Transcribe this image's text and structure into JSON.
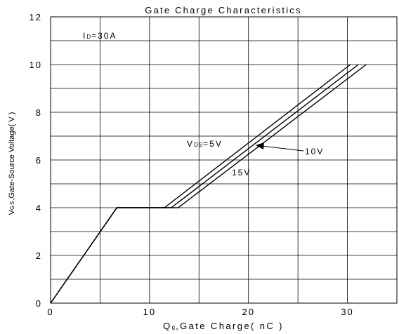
{
  "chart_data": {
    "type": "line",
    "title": "Gate Charge Characteristics",
    "xlabel_main": "Q",
    "xlabel_sub": "g",
    "xlabel_rest": ",Gate Charge( nC )",
    "ylabel_main": "V",
    "ylabel_sub": "GS",
    "ylabel_rest": ",Gate-Source Voltage( V )",
    "xlim": [
      0,
      35
    ],
    "ylim": [
      0,
      12
    ],
    "x_ticks": [
      0,
      10,
      20,
      30
    ],
    "x_tick_labels": [
      "0",
      "10",
      "20",
      "30"
    ],
    "y_ticks": [
      0,
      2,
      4,
      6,
      8,
      10,
      12
    ],
    "y_tick_labels": [
      "0",
      "2",
      "4",
      "6",
      "8",
      "10",
      "12"
    ],
    "x_grid_step": 5,
    "y_grid_step": 1,
    "grid": true,
    "condition": {
      "main": "I",
      "sub": "D",
      "rest": "=30A"
    },
    "series": [
      {
        "name": "5V",
        "points": [
          [
            0,
            0
          ],
          [
            6.7,
            4
          ],
          [
            11.5,
            4
          ],
          [
            30.3,
            10
          ]
        ]
      },
      {
        "name": "10V",
        "points": [
          [
            0,
            0
          ],
          [
            6.7,
            4
          ],
          [
            12.2,
            4
          ],
          [
            31.1,
            10
          ]
        ]
      },
      {
        "name": "15V",
        "points": [
          [
            0,
            0
          ],
          [
            6.7,
            4
          ],
          [
            12.9,
            4
          ],
          [
            31.9,
            10
          ]
        ]
      }
    ],
    "annotations": {
      "vds_main": "V",
      "vds_sub": "DS",
      "vds_rest": "=5V",
      "label_10v": "10V",
      "label_15v": "15V"
    }
  }
}
